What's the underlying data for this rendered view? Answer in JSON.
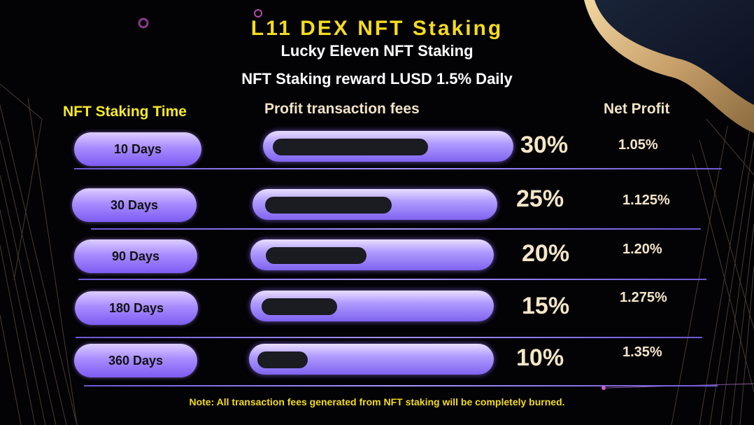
{
  "header": {
    "title": "L11 DEX NFT  Staking",
    "subtitle": "Lucky Eleven NFT Staking",
    "reward_line": "NFT Staking reward LUSD 1.5% Daily"
  },
  "columns": {
    "time": "NFT Staking Time",
    "fee": "Profit transaction fees",
    "net": "Net Profit"
  },
  "rows": [
    {
      "period": "10 Days",
      "fee": "30%",
      "fee_value": 30,
      "net": "1.05%"
    },
    {
      "period": "30 Days",
      "fee": "25%",
      "fee_value": 25,
      "net": "1.125%"
    },
    {
      "period": "90 Days",
      "fee": "20%",
      "fee_value": 20,
      "net": "1.20%"
    },
    {
      "period": "180 Days",
      "fee": "15%",
      "fee_value": 15,
      "net": "1.275%"
    },
    {
      "period": "360 Days",
      "fee": "10%",
      "fee_value": 10,
      "net": "1.35%"
    }
  ],
  "footer": {
    "note": "Note: All transaction fees generated from NFT staking will be completely burned."
  },
  "colors": {
    "title": "#f4dc1e",
    "accent": "#a78cff",
    "background": "#030205"
  }
}
